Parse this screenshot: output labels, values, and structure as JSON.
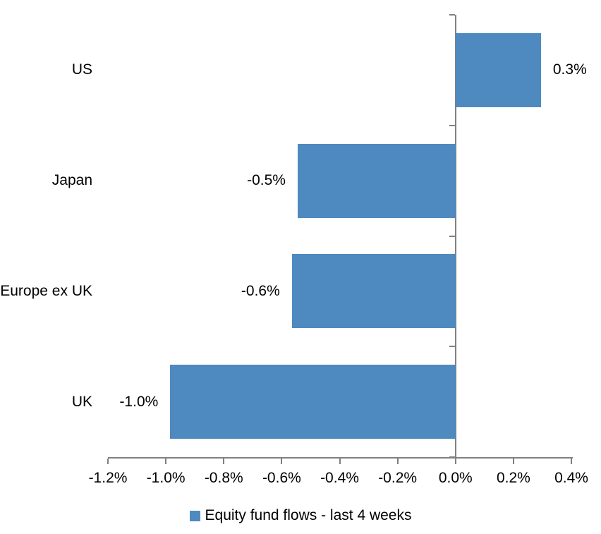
{
  "chart_data": {
    "type": "bar",
    "orientation": "horizontal",
    "title": "",
    "xlabel": "",
    "ylabel": "",
    "categories": [
      "US",
      "Japan",
      "Europe ex UK",
      "UK"
    ],
    "values": [
      0.3,
      -0.5,
      -0.6,
      -1.0
    ],
    "value_labels": [
      "0.3%",
      "-0.5%",
      "-0.6%",
      "-1.0%"
    ],
    "values_precise_pct": [
      0.295,
      -0.545,
      -0.565,
      -0.985
    ],
    "xlim": [
      -1.2,
      0.4
    ],
    "x_tick_values": [
      -1.2,
      -1.0,
      -0.8,
      -0.6,
      -0.4,
      -0.2,
      0.0,
      0.2,
      0.4
    ],
    "x_tick_labels": [
      "-1.2%",
      "-1.0%",
      "-0.8%",
      "-0.6%",
      "-0.4%",
      "-0.2%",
      "0.0%",
      "0.2%",
      "0.4%"
    ],
    "grid": false,
    "legend_position": "bottom",
    "legend": [
      "Equity fund flows - last 4 weeks"
    ],
    "colors": {
      "bar": "#4E8ABF",
      "axis": "#808080",
      "text": "#000000",
      "background": "#FFFFFF"
    }
  }
}
